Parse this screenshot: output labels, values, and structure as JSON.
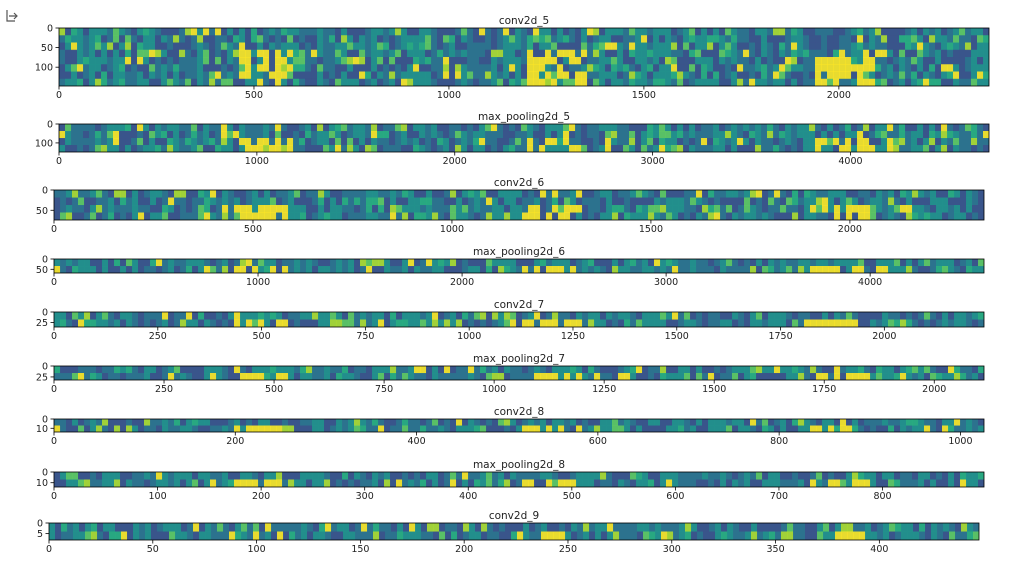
{
  "chart_data": [
    {
      "type": "image",
      "title": "conv2d_5",
      "xlim": [
        0,
        2385
      ],
      "ylim": [
        148,
        0
      ],
      "xticks": [
        0,
        500,
        1000,
        1500,
        2000
      ],
      "yticks": [
        0,
        50,
        100
      ]
    },
    {
      "type": "image",
      "title": "max_pooling2d_5",
      "xlim": [
        0,
        4700
      ],
      "ylim": [
        148,
        0
      ],
      "xticks": [
        0,
        1000,
        2000,
        3000,
        4000
      ],
      "yticks": [
        0,
        100
      ]
    },
    {
      "type": "image",
      "title": "conv2d_6",
      "xlim": [
        0,
        2337
      ],
      "ylim": [
        74,
        0
      ],
      "xticks": [
        0,
        500,
        1000,
        1500,
        2000
      ],
      "yticks": [
        0,
        50
      ]
    },
    {
      "type": "image",
      "title": "max_pooling2d_6",
      "xlim": [
        0,
        4558
      ],
      "ylim": [
        68,
        0
      ],
      "xticks": [
        0,
        1000,
        2000,
        3000,
        4000
      ],
      "yticks": [
        0,
        50
      ]
    },
    {
      "type": "image",
      "title": "conv2d_7",
      "xlim": [
        0,
        2240
      ],
      "ylim": [
        36,
        0
      ],
      "xticks": [
        0,
        250,
        500,
        750,
        1000,
        1250,
        1500,
        1750,
        2000
      ],
      "yticks": [
        0,
        25
      ]
    },
    {
      "type": "image",
      "title": "max_pooling2d_7",
      "xlim": [
        0,
        2113
      ],
      "ylim": [
        32,
        0
      ],
      "xticks": [
        0,
        250,
        500,
        750,
        1000,
        1250,
        1500,
        1750,
        2000
      ],
      "yticks": [
        0,
        25
      ]
    },
    {
      "type": "image",
      "title": "conv2d_8",
      "xlim": [
        0,
        1026
      ],
      "ylim": [
        14,
        0
      ],
      "xticks": [
        0,
        200,
        400,
        600,
        800,
        1000
      ],
      "yticks": [
        0,
        10
      ]
    },
    {
      "type": "image",
      "title": "max_pooling2d_8",
      "xlim": [
        0,
        898
      ],
      "ylim": [
        14,
        0
      ],
      "xticks": [
        0,
        100,
        200,
        300,
        400,
        500,
        600,
        700,
        800
      ],
      "yticks": [
        0,
        10
      ]
    },
    {
      "type": "image",
      "title": "conv2d_9",
      "xlim": [
        0,
        448
      ],
      "ylim": [
        8,
        0
      ],
      "xticks": [
        0,
        50,
        100,
        150,
        200,
        250,
        300,
        350,
        400
      ],
      "yticks": [
        0,
        5
      ]
    }
  ]
}
